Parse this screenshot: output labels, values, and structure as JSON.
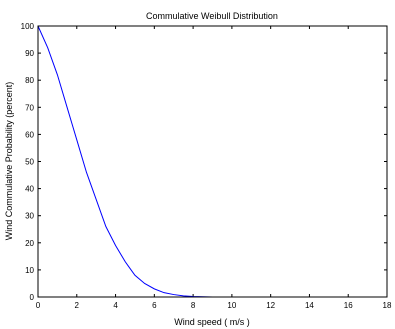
{
  "chart_data": {
    "type": "line",
    "title": "Commulative Weibull Distribution",
    "xlabel": "Wind speed ( m/s )",
    "ylabel": "Wind Commulative Probability (percent)",
    "xlim": [
      0,
      18
    ],
    "ylim": [
      0,
      100
    ],
    "xticks": [
      "0",
      "2",
      "4",
      "6",
      "8",
      "10",
      "12",
      "14",
      "16",
      "18"
    ],
    "yticks": [
      "0",
      "10",
      "20",
      "30",
      "40",
      "50",
      "60",
      "70",
      "80",
      "90",
      "100"
    ],
    "grid": false,
    "series": [
      {
        "color": "#0000ff",
        "x": [
          0,
          0.5,
          1,
          1.5,
          2,
          2.5,
          3,
          3.5,
          4,
          4.5,
          5,
          5.5,
          6,
          6.5,
          7,
          7.5,
          8,
          8.5,
          9,
          10,
          11,
          12,
          13,
          14,
          15,
          16,
          17,
          18
        ],
        "y": [
          100,
          92,
          82,
          70,
          58,
          46,
          36,
          26,
          19,
          13,
          8,
          5,
          3,
          1.6,
          0.9,
          0.4,
          0.2,
          0.1,
          0,
          0,
          0,
          0,
          0,
          0,
          0,
          0,
          0,
          0
        ]
      }
    ]
  }
}
